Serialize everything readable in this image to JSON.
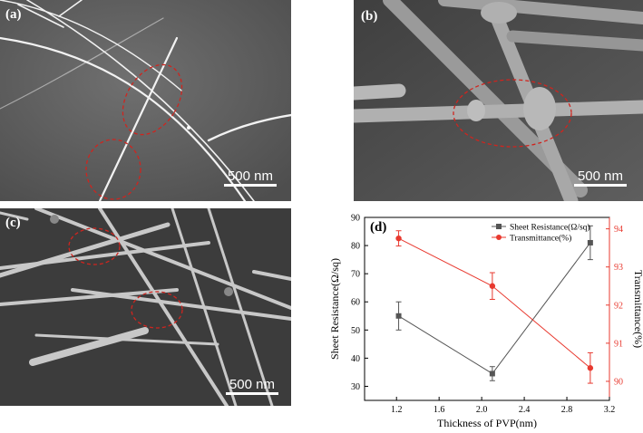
{
  "panels": {
    "a": {
      "label": "(a)",
      "scale": "500 nm"
    },
    "b": {
      "label": "(b)",
      "scale": "500 nm"
    },
    "c": {
      "label": "(c)",
      "scale": "500 nm"
    },
    "d": {
      "label": "(d)"
    }
  },
  "chart_data": {
    "type": "line",
    "xlabel": "Thickness of PVP(nm)",
    "ylabel_left": "Sheet Resistance(Ω/sq)",
    "ylabel_right": "Transmittance(%)",
    "x": [
      1.22,
      2.1,
      3.02
    ],
    "xlim": [
      0.9,
      3.2
    ],
    "xticks": [
      "1.2",
      "1.6",
      "2.0",
      "2.4",
      "2.8",
      "3.2"
    ],
    "ylim_left": [
      25,
      90
    ],
    "yticks_left": [
      "30",
      "40",
      "50",
      "60",
      "70",
      "80",
      "90"
    ],
    "ylim_right": [
      89.5,
      94.3
    ],
    "yticks_right": [
      "90",
      "91",
      "92",
      "93",
      "94"
    ],
    "series": [
      {
        "name": "Sheet Resistance(Ω/sq)",
        "axis": "left",
        "color": "#555555",
        "marker": "square",
        "values": [
          55,
          34.5,
          81
        ],
        "errors": [
          5,
          2.5,
          6
        ]
      },
      {
        "name": "Transmittance(%)",
        "axis": "right",
        "color": "#e8392f",
        "marker": "circle",
        "values": [
          93.75,
          92.5,
          90.35
        ],
        "errors": [
          0.2,
          0.35,
          0.4
        ]
      }
    ],
    "legend": "top-right",
    "grid": false
  }
}
